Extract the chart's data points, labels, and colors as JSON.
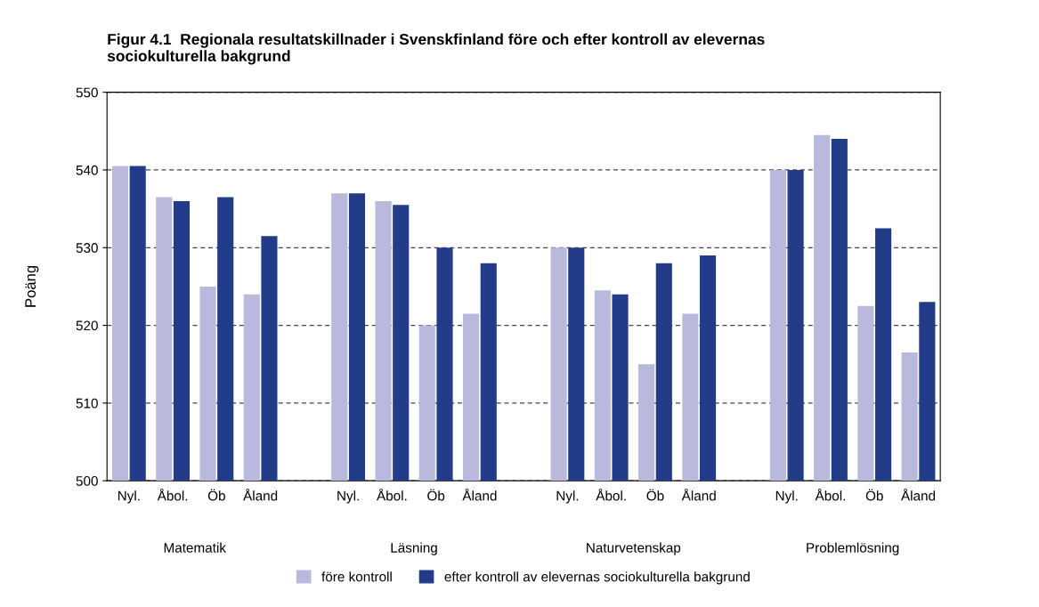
{
  "chart_data": {
    "type": "bar",
    "title": "Figur 4.1  Regionala resultatskillnader i Svenskfinland före och efter kontroll av elevernas\nsociokulturella bakgrund",
    "ylabel": "Poäng",
    "categories": [
      "Nyl.",
      "Åbol.",
      "Öb",
      "Åland",
      null,
      "Nyl.",
      "Åbol.",
      "Öb",
      "Åland",
      null,
      "Nyl.",
      "Åbol.",
      "Öb",
      "Åland",
      null,
      "Nyl.",
      "Åbol.",
      "Öb",
      "Åland"
    ],
    "series": [
      {
        "name": "före kontroll",
        "color": "#b8b9dc",
        "values": [
          540.5,
          536.5,
          525,
          524,
          null,
          537,
          536,
          520,
          521.5,
          null,
          530,
          524.5,
          515,
          521.5,
          null,
          540,
          544.5,
          522.5,
          516.5
        ]
      },
      {
        "name": "efter kontroll av elevernas sociokulturella bakgrund",
        "color": "#233c8a",
        "values": [
          540.5,
          536,
          536.5,
          531.5,
          null,
          537,
          535.5,
          530,
          528,
          null,
          530,
          524,
          528,
          529,
          null,
          540,
          544,
          532.5,
          523
        ]
      }
    ],
    "annotations": [
      "Matematik",
      "Läsning",
      "Naturvetenskap",
      "Problemlösning"
    ],
    "ylim": [
      500,
      550
    ],
    "yticks": [
      500,
      510,
      520,
      530,
      540,
      550
    ],
    "grid": "y",
    "legend": "bottom"
  }
}
